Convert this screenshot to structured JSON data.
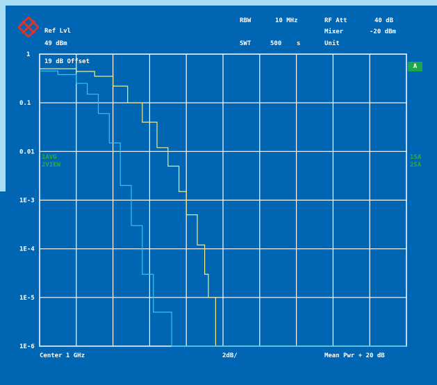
{
  "header": {
    "ref_lvl_label": "Ref Lvl",
    "ref_lvl_value": "49 dBm",
    "rbw_label": "RBW",
    "rbw_value": "10 MHz",
    "swt_label": "SWT",
    "swt_value": "500",
    "swt_unit": "s",
    "rf_att_label": "RF Att",
    "rf_att_value": "40 dB",
    "mixer_label": "Mixer",
    "mixer_value": "-20 dBm",
    "unit_label": "Unit"
  },
  "offset_label": "19 dB Offset",
  "trace_badge": "A",
  "left_trace_labels": [
    "1AVG",
    "2VIEW"
  ],
  "right_trace_labels": [
    "1SA",
    "2SA"
  ],
  "footer": {
    "center": "Center 1 GHz",
    "scale": "2dB/",
    "mean_pwr": "Mean Pwr + 20 dB"
  },
  "colors": {
    "background": "#0066b3",
    "grid": "#ffffff",
    "trace1": "#f4ec84",
    "trace2": "#33c6ee",
    "label_green": "#2ea84a"
  },
  "chart_data": {
    "type": "line",
    "y_scale": "log",
    "ylim": [
      1e-06,
      1
    ],
    "y_tick_labels": [
      "1",
      "0.1",
      "0.01",
      "1E-3",
      "1E-4",
      "1E-5",
      "1E-6"
    ],
    "x_divisions": 10,
    "x_unit_label": "2dB/",
    "xlim": [
      0,
      20
    ],
    "series": [
      {
        "name": "1AVG",
        "color": "#f4ec84",
        "x": [
          0,
          2,
          3,
          4,
          4.8,
          5.6,
          6.4,
          7,
          7.6,
          8,
          8.6,
          9,
          9.2,
          9.6,
          20
        ],
        "y": [
          0.5,
          0.44,
          0.35,
          0.22,
          0.1,
          0.04,
          0.012,
          0.005,
          0.0015,
          0.0005,
          0.00012,
          3e-05,
          1e-05,
          1e-06,
          1e-06
        ]
      },
      {
        "name": "2VIEW",
        "color": "#33c6ee",
        "x": [
          0,
          1,
          2,
          2.6,
          3.2,
          3.8,
          4.4,
          5,
          5.6,
          6.2,
          7.2,
          20
        ],
        "y": [
          0.45,
          0.38,
          0.25,
          0.15,
          0.06,
          0.015,
          0.002,
          0.0003,
          3e-05,
          5e-06,
          1e-06,
          1e-06
        ]
      }
    ]
  }
}
